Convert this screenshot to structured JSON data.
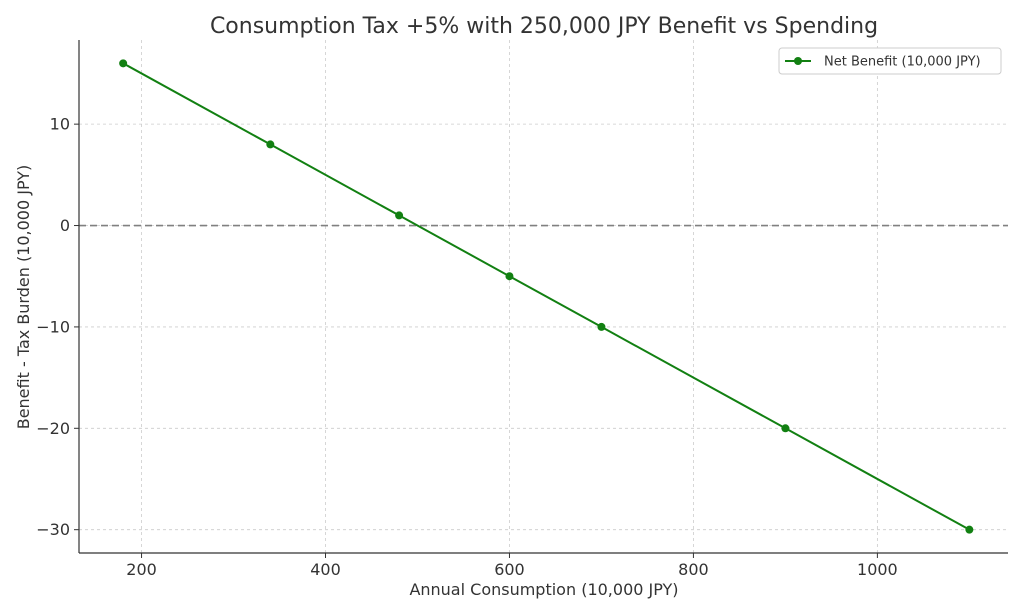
{
  "chart_data": {
    "type": "line",
    "title": "Consumption Tax +5% with 250,000 JPY Benefit vs Spending",
    "xlabel": "Annual Consumption (10,000 JPY)",
    "ylabel": "Benefit - Tax Burden (10,000 JPY)",
    "xlim": [
      132,
      1142
    ],
    "ylim": [
      -32.3,
      18.3
    ],
    "xticks": [
      200,
      400,
      600,
      800,
      1000
    ],
    "yticks": [
      -30,
      -20,
      -10,
      0,
      10
    ],
    "xtick_labels": [
      "200",
      "400",
      "600",
      "800",
      "1000"
    ],
    "ytick_labels": [
      "−30",
      "−20",
      "−10",
      "0",
      "10"
    ],
    "grid": true,
    "legend_position": "top-right",
    "series": [
      {
        "name": "Net Benefit (10,000 JPY)",
        "color": "#128012",
        "marker": "circle",
        "x": [
          180,
          340,
          480,
          600,
          700,
          900,
          1100
        ],
        "y": [
          16,
          8,
          1,
          -5,
          -10,
          -20,
          -30
        ]
      }
    ],
    "reference_line": {
      "y": 0,
      "style": "dashed",
      "color": "#808080"
    }
  }
}
